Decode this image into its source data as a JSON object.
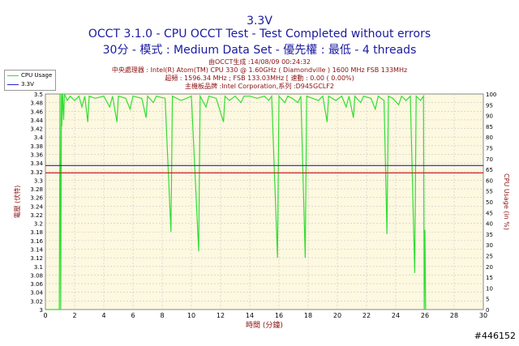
{
  "chart_data": {
    "type": "line",
    "title": "3.3V",
    "subtitle": "OCCT 3.1.0 - CPU OCCT Test - Test Completed without errors",
    "subtitle2": "30分 - 模式 : Medium Data Set - 優先權 : 最低 - 4 threads",
    "info_lines": [
      "由OCCT生成 :14/08/09 00:24:32",
      "中央處理器 : Intel(R) Atom(TM) CPU 330 @ 1.60GHz ( Diamondville ) 1600 MHz FSB 133MHz",
      "超頻 : 1596.34 MHz ; FSB 133.03MHz [ 速動 : 0.00 ( 0.00%)",
      "主機板品牌 :Intel Corporation,系列 :D945GCLF2"
    ],
    "xlabel": "時間 (分鐘)",
    "ylabel_left": "電壓 (伏特)",
    "ylabel_right": "CPU Usage (in %)",
    "xlim": [
      0,
      30
    ],
    "ylim_left": [
      3.0,
      3.5
    ],
    "ylim_right": [
      0,
      100
    ],
    "x_ticks": [
      "0",
      "2",
      "4",
      "6",
      "8",
      "10",
      "12",
      "14",
      "16",
      "18",
      "20",
      "22",
      "24",
      "26",
      "28",
      "30"
    ],
    "y_ticks_left": [
      "3",
      "3.02",
      "3.04",
      "3.06",
      "3.08",
      "3.1",
      "3.12",
      "3.14",
      "3.16",
      "3.18",
      "3.2",
      "3.22",
      "3.24",
      "3.26",
      "3.28",
      "3.3",
      "3.32",
      "3.34",
      "3.36",
      "3.38",
      "3.4",
      "3.42",
      "3.44",
      "3.46",
      "3.48",
      "3.5"
    ],
    "y_ticks_right": [
      "0",
      "5",
      "10",
      "15",
      "20",
      "25",
      "30",
      "35",
      "40",
      "45",
      "50",
      "55",
      "60",
      "65",
      "70",
      "75",
      "80",
      "85",
      "90",
      "95",
      "100"
    ],
    "legend": [
      "CPU Usage",
      "3.3V"
    ],
    "colors": {
      "cpu": "#33dd33",
      "voltage": "#2222cc",
      "nominal": "#cc2222",
      "plot_bg": "#fdf8e0",
      "grid": "#c8c8c8"
    },
    "series": [
      {
        "name": "CPU Usage",
        "axis": "right",
        "points": [
          [
            0,
            0
          ],
          [
            0.95,
            0
          ],
          [
            1.0,
            100
          ],
          [
            1.05,
            0
          ],
          [
            1.1,
            100
          ],
          [
            1.12,
            85
          ],
          [
            1.18,
            100
          ],
          [
            1.25,
            88
          ],
          [
            1.3,
            100
          ],
          [
            1.5,
            97
          ],
          [
            1.7,
            99
          ],
          [
            2.0,
            97
          ],
          [
            2.3,
            99
          ],
          [
            2.5,
            94
          ],
          [
            2.7,
            99
          ],
          [
            2.9,
            87
          ],
          [
            3.0,
            99
          ],
          [
            3.4,
            98
          ],
          [
            4.0,
            99
          ],
          [
            4.4,
            94
          ],
          [
            4.6,
            99
          ],
          [
            4.9,
            87
          ],
          [
            5.0,
            99
          ],
          [
            5.5,
            98
          ],
          [
            5.8,
            93
          ],
          [
            6.0,
            99
          ],
          [
            6.6,
            98
          ],
          [
            6.9,
            89
          ],
          [
            7.0,
            99
          ],
          [
            7.4,
            96
          ],
          [
            7.6,
            99
          ],
          [
            8.2,
            98
          ],
          [
            8.6,
            36
          ],
          [
            8.7,
            99
          ],
          [
            9.3,
            97
          ],
          [
            10.0,
            99
          ],
          [
            10.5,
            27
          ],
          [
            10.6,
            99
          ],
          [
            11.0,
            94
          ],
          [
            11.2,
            99
          ],
          [
            11.7,
            98
          ],
          [
            12.2,
            87
          ],
          [
            12.3,
            99
          ],
          [
            12.6,
            97
          ],
          [
            13.0,
            99
          ],
          [
            13.4,
            96
          ],
          [
            13.6,
            99
          ],
          [
            14.0,
            99
          ],
          [
            14.5,
            98
          ],
          [
            15.0,
            99
          ],
          [
            15.3,
            97
          ],
          [
            15.5,
            99
          ],
          [
            15.9,
            24
          ],
          [
            16.0,
            99
          ],
          [
            16.4,
            96
          ],
          [
            16.6,
            99
          ],
          [
            16.9,
            98
          ],
          [
            17.3,
            96
          ],
          [
            17.5,
            99
          ],
          [
            17.8,
            24
          ],
          [
            17.9,
            99
          ],
          [
            18.3,
            98
          ],
          [
            18.7,
            97
          ],
          [
            19.0,
            99
          ],
          [
            19.3,
            87
          ],
          [
            19.4,
            99
          ],
          [
            19.9,
            97
          ],
          [
            20.3,
            99
          ],
          [
            20.6,
            94
          ],
          [
            20.8,
            99
          ],
          [
            21.1,
            89
          ],
          [
            21.2,
            99
          ],
          [
            21.6,
            96
          ],
          [
            21.8,
            99
          ],
          [
            22.3,
            98
          ],
          [
            22.6,
            93
          ],
          [
            22.8,
            99
          ],
          [
            23.2,
            97
          ],
          [
            23.4,
            35
          ],
          [
            23.5,
            99
          ],
          [
            23.8,
            98
          ],
          [
            24.2,
            95
          ],
          [
            24.4,
            99
          ],
          [
            24.7,
            97
          ],
          [
            25.0,
            99
          ],
          [
            25.3,
            17
          ],
          [
            25.4,
            99
          ],
          [
            25.7,
            97
          ],
          [
            25.9,
            99
          ],
          [
            25.95,
            0
          ],
          [
            26.0,
            37
          ],
          [
            26.05,
            0
          ]
        ]
      },
      {
        "name": "3.3V",
        "axis": "left",
        "constant": 3.334,
        "x_range": [
          0,
          30
        ]
      },
      {
        "name": "nominal",
        "axis": "left",
        "constant": 3.317,
        "x_range": [
          0,
          30
        ]
      }
    ]
  },
  "watermark": "#446152"
}
